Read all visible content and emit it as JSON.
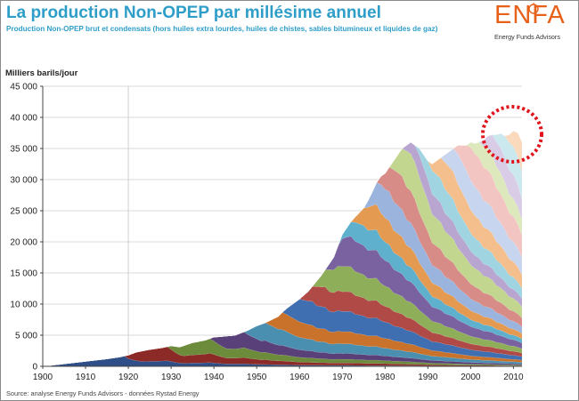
{
  "header": {
    "title": "La production Non-OPEP par millésime annuel",
    "subtitle": "Production Non-OPEP brut et condensats (hors huiles extra lourdes, huiles de chistes, sables bitumineux et liquides de gaz)"
  },
  "logo": {
    "word": "ENFA",
    "tagline": "Energy Funds Advisors"
  },
  "footer": {
    "source": "Source: analyse Energy Funds Advisors - données Rystad Energy"
  },
  "colors": {
    "title": "#2e9ec9",
    "logo": "#e8611b",
    "highlight_circle": "#e0141c",
    "bands": [
      "#2f4f88",
      "#8b2a26",
      "#6c8c3c",
      "#5a4078",
      "#4a8fb0",
      "#c9722b",
      "#3f6fb0",
      "#b04a46",
      "#8fae5a",
      "#7a62a0",
      "#5fb0cc",
      "#e59a52",
      "#9ab4de",
      "#d88c88",
      "#c2d690",
      "#b8a6d0",
      "#9fd4e0",
      "#f4bf8c",
      "#c7d6ee",
      "#f2c4c2",
      "#dde8bc",
      "#d8cce6",
      "#cce8ef",
      "#fad9bd"
    ]
  },
  "chart_data": {
    "type": "area",
    "stacked": true,
    "title": "La production Non-OPEP par millésime annuel",
    "ylabel": "Milliers barils/jour",
    "xlabel": "",
    "xlim": [
      1900,
      2012
    ],
    "ylim": [
      0,
      45000
    ],
    "x_ticks": [
      1900,
      1910,
      1920,
      1930,
      1940,
      1950,
      1960,
      1970,
      1980,
      1990,
      2000,
      2010
    ],
    "y_ticks": [
      0,
      5000,
      10000,
      15000,
      20000,
      25000,
      30000,
      35000,
      40000,
      45000
    ],
    "y_tick_labels": [
      "0",
      "5 000",
      "10 000",
      "15 000",
      "20 000",
      "25 000",
      "30 000",
      "35 000",
      "40 000",
      "45 000"
    ],
    "x_tick_labels": [
      "1900",
      "1910",
      "1920",
      "1930",
      "1940",
      "1950",
      "1960",
      "1970",
      "1980",
      "1990",
      "2000",
      "2010"
    ],
    "grid": "horizontal",
    "series_note": "stacked by vintage year of field start-up (one band per vintage)",
    "total": {
      "x": [
        1900,
        1905,
        1910,
        1915,
        1918,
        1920,
        1922,
        1925,
        1928,
        1930,
        1932,
        1935,
        1938,
        1940,
        1942,
        1945,
        1948,
        1950,
        1952,
        1955,
        1957,
        1960,
        1962,
        1965,
        1967,
        1968,
        1970,
        1971,
        1972,
        1973,
        1975,
        1976,
        1977,
        1978,
        1979,
        1980,
        1981,
        1982,
        1983,
        1984,
        1985,
        1986,
        1987,
        1988,
        1989,
        1990,
        1991,
        1992,
        1993,
        1994,
        1995,
        1996,
        1997,
        1998,
        1999,
        2000,
        2001,
        2002,
        2003,
        2004,
        2005,
        2006,
        2007,
        2008,
        2009,
        2010,
        2011,
        2012
      ],
      "y": [
        0,
        400,
        800,
        1200,
        1500,
        1800,
        2300,
        2700,
        3000,
        3300,
        3100,
        3800,
        4200,
        4700,
        4800,
        5000,
        5800,
        6500,
        7000,
        8000,
        9300,
        10800,
        12000,
        14500,
        16500,
        17500,
        21200,
        22200,
        23200,
        24000,
        25400,
        26600,
        28000,
        29500,
        30500,
        31000,
        32000,
        33000,
        34000,
        35000,
        35500,
        36000,
        35500,
        35000,
        34000,
        33000,
        32500,
        33000,
        33500,
        34000,
        34500,
        35000,
        35500,
        35500,
        35500,
        36000,
        35800,
        36000,
        36300,
        37000,
        37200,
        37200,
        37400,
        37000,
        37200,
        37800,
        37500,
        36000
      ]
    },
    "annotations": [
      "dotted red circle highlighting the 2004–2012 plateau"
    ]
  }
}
